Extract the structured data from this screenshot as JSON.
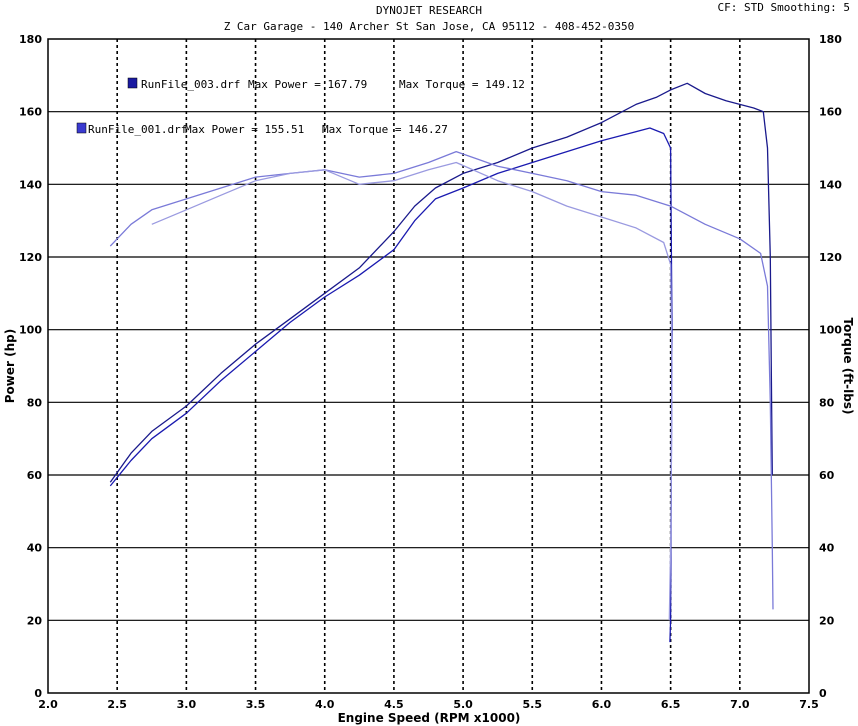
{
  "header": {
    "title": "DYNOJET RESEARCH",
    "subtitle": "Z Car Garage - 140 Archer St San Jose, CA 95112 - 408-452-0350",
    "settings": "CF: STD  Smoothing: 5"
  },
  "legend": [
    {
      "run": "RunFile_003.drf",
      "power_text": "Max Power = 167.79",
      "torque_text": "Max Torque = 149.12",
      "color": "#1a1aa0"
    },
    {
      "run": "RunFile_001.drf",
      "power_text": "Max Power = 155.51",
      "torque_text": "Max Torque = 146.27",
      "color": "#3a3ad0"
    }
  ],
  "chart_data": {
    "type": "line",
    "title": "DYNOJET RESEARCH",
    "xlabel": "Engine Speed (RPM x1000)",
    "ylabel_left": "Power (hp)",
    "ylabel_right": "Torque (ft-lbs)",
    "xlim": [
      2.0,
      7.5
    ],
    "ylim": [
      0,
      180
    ],
    "x_ticks": [
      "2.0",
      "2.5",
      "3.0",
      "3.5",
      "4.0",
      "4.5",
      "5.0",
      "5.5",
      "6.0",
      "6.5",
      "7.0",
      "7.5"
    ],
    "y_ticks": [
      "0",
      "20",
      "40",
      "60",
      "80",
      "100",
      "120",
      "140",
      "160",
      "180"
    ],
    "grid": true,
    "series": [
      {
        "name": "RunFile_003.drf",
        "measure": "power",
        "color": "#1a1a8c",
        "points": [
          [
            2.45,
            58
          ],
          [
            2.6,
            66
          ],
          [
            2.75,
            72
          ],
          [
            3.0,
            79
          ],
          [
            3.25,
            88
          ],
          [
            3.5,
            96
          ],
          [
            3.75,
            103
          ],
          [
            4.0,
            110
          ],
          [
            4.25,
            117
          ],
          [
            4.5,
            127
          ],
          [
            4.65,
            134
          ],
          [
            4.8,
            139
          ],
          [
            5.0,
            143
          ],
          [
            5.25,
            146
          ],
          [
            5.5,
            150
          ],
          [
            5.75,
            153
          ],
          [
            6.0,
            157
          ],
          [
            6.25,
            162
          ],
          [
            6.4,
            164
          ],
          [
            6.5,
            166
          ],
          [
            6.62,
            167.8
          ],
          [
            6.75,
            165
          ],
          [
            6.9,
            163
          ],
          [
            7.0,
            162
          ],
          [
            7.1,
            161
          ],
          [
            7.17,
            160
          ],
          [
            7.2,
            150
          ],
          [
            7.22,
            120
          ],
          [
            7.23,
            80
          ],
          [
            7.235,
            60
          ]
        ]
      },
      {
        "name": "RunFile_001.drf",
        "measure": "power",
        "color": "#1a1ab0",
        "points": [
          [
            2.45,
            57
          ],
          [
            2.6,
            64
          ],
          [
            2.75,
            70
          ],
          [
            3.0,
            77
          ],
          [
            3.25,
            86
          ],
          [
            3.5,
            94
          ],
          [
            3.75,
            102
          ],
          [
            4.0,
            109
          ],
          [
            4.25,
            115
          ],
          [
            4.5,
            122
          ],
          [
            4.65,
            130
          ],
          [
            4.8,
            136
          ],
          [
            5.0,
            139
          ],
          [
            5.25,
            143
          ],
          [
            5.5,
            146
          ],
          [
            5.75,
            149
          ],
          [
            6.0,
            152
          ],
          [
            6.2,
            154
          ],
          [
            6.35,
            155.5
          ],
          [
            6.45,
            154
          ],
          [
            6.5,
            150
          ],
          [
            6.51,
            100
          ],
          [
            6.505,
            60
          ],
          [
            6.5,
            20
          ],
          [
            6.495,
            14
          ]
        ]
      },
      {
        "name": "RunFile_003.drf",
        "measure": "torque",
        "color": "#7a7ad8",
        "points": [
          [
            2.45,
            123
          ],
          [
            2.6,
            129
          ],
          [
            2.75,
            133
          ],
          [
            3.0,
            136
          ],
          [
            3.25,
            139
          ],
          [
            3.5,
            142
          ],
          [
            3.75,
            143
          ],
          [
            4.0,
            144
          ],
          [
            4.25,
            142
          ],
          [
            4.5,
            143
          ],
          [
            4.75,
            146
          ],
          [
            4.95,
            149
          ],
          [
            5.1,
            147
          ],
          [
            5.25,
            145
          ],
          [
            5.5,
            143
          ],
          [
            5.75,
            141
          ],
          [
            6.0,
            138
          ],
          [
            6.25,
            137
          ],
          [
            6.5,
            134
          ],
          [
            6.75,
            129
          ],
          [
            7.0,
            125
          ],
          [
            7.15,
            121
          ],
          [
            7.2,
            112
          ],
          [
            7.22,
            80
          ],
          [
            7.235,
            40
          ],
          [
            7.24,
            23
          ]
        ]
      },
      {
        "name": "RunFile_001.drf",
        "measure": "torque",
        "color": "#9a9ae0",
        "points": [
          [
            2.75,
            129
          ],
          [
            3.0,
            133
          ],
          [
            3.25,
            137
          ],
          [
            3.5,
            141
          ],
          [
            3.75,
            143
          ],
          [
            4.0,
            144
          ],
          [
            4.25,
            140
          ],
          [
            4.5,
            141
          ],
          [
            4.75,
            144
          ],
          [
            4.95,
            146
          ],
          [
            5.25,
            141
          ],
          [
            5.5,
            138
          ],
          [
            5.75,
            134
          ],
          [
            6.0,
            131
          ],
          [
            6.25,
            128
          ],
          [
            6.45,
            124
          ],
          [
            6.5,
            118
          ],
          [
            6.51,
            90
          ],
          [
            6.505,
            60
          ],
          [
            6.5,
            40
          ],
          [
            6.49,
            20
          ]
        ]
      }
    ]
  }
}
